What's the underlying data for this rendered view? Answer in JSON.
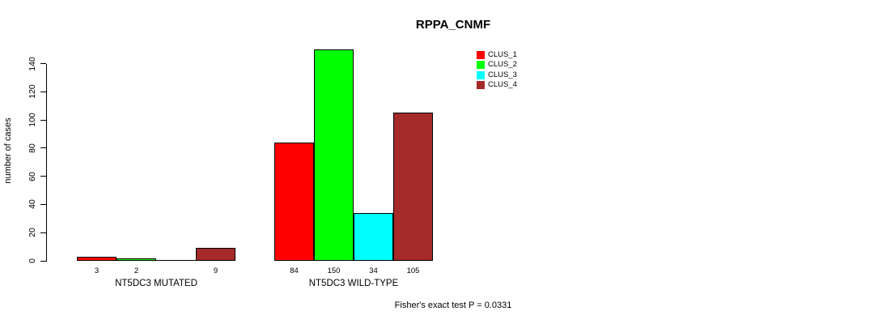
{
  "chart_data": {
    "type": "bar",
    "title": "RPPA_CNMF",
    "ylabel": "number of cases",
    "xlabel": "",
    "yticks": [
      0,
      20,
      40,
      60,
      80,
      100,
      120,
      140
    ],
    "ylim": [
      0,
      150
    ],
    "grid": false,
    "legend_position": "top-right",
    "categories": [
      "NT5DC3 MUTATED",
      "NT5DC3 WILD-TYPE"
    ],
    "series": [
      {
        "name": "CLUS_1",
        "color": "#FF0000",
        "values": [
          3,
          84
        ]
      },
      {
        "name": "CLUS_2",
        "color": "#00FF00",
        "values": [
          2,
          150
        ]
      },
      {
        "name": "CLUS_3",
        "color": "#00FFFF",
        "values": [
          0,
          34
        ]
      },
      {
        "name": "CLUS_4",
        "color": "#A52A2A",
        "values": [
          9,
          105
        ]
      }
    ],
    "bar_labels": [
      [
        "3",
        "2",
        "",
        "9"
      ],
      [
        "84",
        "150",
        "34",
        "105"
      ]
    ],
    "footnote": "Fisher's exact test P = 0.0331"
  }
}
